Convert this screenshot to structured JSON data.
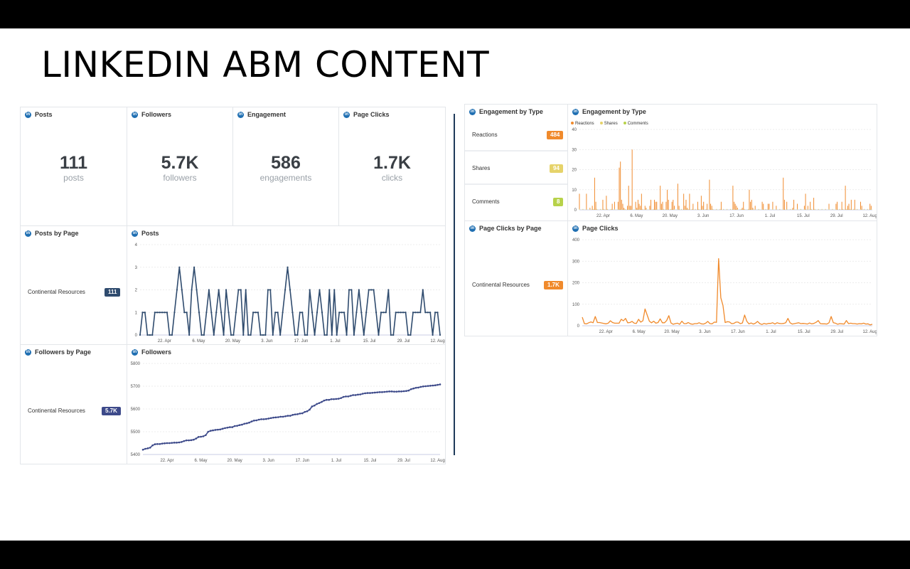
{
  "slide": {
    "title": "LINKEDIN ABM CONTENT"
  },
  "colors": {
    "navy": "#2f4b6e",
    "followers_line": "#3d4a8a",
    "orange": "#f08a2c",
    "shares": "#e6d36a",
    "comments": "#b7d24a",
    "linkedin": "#1f6fb2"
  },
  "metrics": [
    {
      "title": "Posts",
      "value": "111",
      "unit": "posts"
    },
    {
      "title": "Followers",
      "value": "5.7K",
      "unit": "followers"
    },
    {
      "title": "Engagement",
      "value": "586",
      "unit": "engagements"
    },
    {
      "title": "Page Clicks",
      "value": "1.7K",
      "unit": "clicks"
    }
  ],
  "posts_by_page": {
    "title": "Posts by Page",
    "label": "Continental Resources",
    "badge": "111"
  },
  "followers_by_page": {
    "title": "Followers by Page",
    "label": "Continental Resources",
    "badge": "5.7K"
  },
  "engagement_by_type": {
    "title": "Engagement by Type",
    "rows": [
      {
        "label": "Reactions",
        "badge": "484",
        "color": "#f08a2c"
      },
      {
        "label": "Shares",
        "badge": "94",
        "color": "#e6d36a"
      },
      {
        "label": "Comments",
        "badge": "8",
        "color": "#b7d24a"
      }
    ]
  },
  "page_clicks_by_page": {
    "title": "Page Clicks by Page",
    "label": "Continental Resources",
    "badge": "1.7K"
  },
  "x_ticks": [
    "22. Apr",
    "6. May",
    "20. May",
    "3. Jun",
    "17. Jun",
    "1. Jul",
    "15. Jul",
    "29. Jul",
    "12. Aug"
  ],
  "chart_data": [
    {
      "id": "posts",
      "type": "line",
      "title": "Posts",
      "x_start": "2019-04-12",
      "x_end": "2019-08-13",
      "ylim": [
        0,
        4
      ],
      "yticks": [
        0,
        1,
        2,
        3,
        4
      ],
      "series": [
        {
          "values": [
            0,
            1,
            1,
            0,
            0,
            0,
            1,
            1,
            1,
            1,
            1,
            1,
            0,
            0,
            1,
            2,
            3,
            2,
            1,
            1,
            0,
            2,
            3,
            2,
            1,
            0,
            0,
            1,
            2,
            1,
            0,
            1,
            2,
            1,
            0,
            2,
            1,
            0,
            0,
            1,
            2,
            2,
            0,
            2,
            0,
            0,
            1,
            1,
            1,
            0,
            0,
            0,
            2,
            2,
            0,
            1,
            1,
            0,
            1,
            2,
            3,
            2,
            1,
            0,
            0,
            1,
            1,
            0,
            0,
            2,
            1,
            0,
            1,
            2,
            1,
            0,
            0,
            2,
            0,
            2,
            0,
            1,
            1,
            1,
            0,
            2,
            2,
            0,
            1,
            2,
            1,
            0,
            1,
            2,
            2,
            2,
            1,
            0,
            1,
            1,
            1,
            2,
            0,
            0,
            1,
            1,
            1,
            1,
            1,
            0,
            0,
            1,
            1,
            1,
            1,
            2,
            1,
            1,
            1,
            0,
            1,
            1,
            0
          ]
        }
      ]
    },
    {
      "id": "followers",
      "type": "line",
      "title": "Followers",
      "x_start": "2019-04-12",
      "x_end": "2019-08-13",
      "ylim": [
        5400,
        5800
      ],
      "yticks": [
        5400,
        5500,
        5600,
        5700,
        5800
      ],
      "series": [
        {
          "values": [
            5421,
            5425,
            5427,
            5430,
            5440,
            5445,
            5446,
            5446,
            5448,
            5449,
            5450,
            5450,
            5451,
            5452,
            5452,
            5453,
            5455,
            5459,
            5462,
            5462,
            5463,
            5465,
            5470,
            5477,
            5478,
            5480,
            5485,
            5500,
            5504,
            5506,
            5508,
            5509,
            5510,
            5513,
            5516,
            5518,
            5520,
            5520,
            5525,
            5526,
            5529,
            5531,
            5535,
            5537,
            5540,
            5545,
            5549,
            5550,
            5553,
            5555,
            5555,
            5556,
            5558,
            5560,
            5562,
            5563,
            5564,
            5566,
            5566,
            5568,
            5570,
            5570,
            5574,
            5576,
            5577,
            5580,
            5581,
            5587,
            5590,
            5597,
            5611,
            5615,
            5622,
            5626,
            5631,
            5637,
            5640,
            5640,
            5643,
            5643,
            5644,
            5645,
            5648,
            5653,
            5655,
            5655,
            5658,
            5661,
            5661,
            5663,
            5664,
            5667,
            5669,
            5670,
            5670,
            5671,
            5672,
            5673,
            5674,
            5674,
            5675,
            5676,
            5677,
            5677,
            5676,
            5676,
            5677,
            5677,
            5678,
            5679,
            5681,
            5687,
            5690,
            5693,
            5694,
            5697,
            5699,
            5700,
            5701,
            5702,
            5703,
            5704,
            5706,
            5708
          ]
        }
      ]
    },
    {
      "id": "engagement_by_type",
      "type": "bar",
      "title": "Engagement by Type",
      "x_start": "2019-04-12",
      "x_end": "2019-08-13",
      "ylim": [
        0,
        40
      ],
      "yticks": [
        0,
        10,
        20,
        30,
        40
      ],
      "legend": [
        "Reactions",
        "Shares",
        "Comments"
      ],
      "series": [
        {
          "name": "Reactions",
          "values": [
            8,
            0,
            0,
            0,
            0,
            0,
            8,
            0,
            0,
            1,
            0,
            2,
            0,
            16,
            4,
            0,
            0,
            0,
            0,
            0,
            5,
            0,
            0,
            7,
            0,
            0,
            0,
            0,
            3,
            0,
            4,
            0,
            0,
            4,
            21,
            24,
            5,
            3,
            1,
            0,
            0,
            2,
            12,
            2,
            2,
            30,
            0,
            0,
            4,
            1,
            5,
            3,
            2,
            8,
            0,
            0,
            2,
            1,
            0,
            0,
            2,
            5,
            0,
            0,
            5,
            4,
            4,
            0,
            0,
            12,
            3,
            4,
            0,
            0,
            4,
            10,
            5,
            0,
            0,
            4,
            5,
            2,
            0,
            0,
            13,
            2,
            0,
            0,
            0,
            8,
            2,
            5,
            1,
            0,
            8,
            0,
            0,
            3,
            0,
            0,
            0,
            4,
            0,
            0,
            7,
            2,
            4,
            0,
            0,
            3,
            0,
            15,
            3,
            2,
            0,
            0,
            0,
            0,
            0,
            0,
            0,
            4,
            0,
            0,
            0,
            0,
            0,
            0,
            0,
            0,
            0,
            12,
            4,
            3,
            2,
            1,
            0,
            0,
            0,
            1,
            4,
            0,
            0,
            0,
            0,
            10,
            4,
            5,
            1,
            0,
            2,
            0,
            0,
            0,
            0,
            0,
            4,
            3,
            0,
            0,
            0,
            3,
            3,
            0,
            0,
            4,
            0,
            0,
            2,
            0,
            0,
            0,
            0,
            0,
            16,
            5,
            0,
            4,
            0,
            0,
            0,
            0,
            1,
            5,
            0,
            0,
            3,
            0,
            0,
            0,
            0,
            0,
            2,
            8,
            0,
            2,
            0,
            4,
            0,
            0,
            6,
            0,
            0,
            0,
            0,
            0,
            0,
            0,
            0,
            0,
            0,
            0,
            0,
            3,
            0,
            0,
            0,
            0,
            0,
            3,
            4,
            0,
            0,
            0,
            4,
            0,
            0,
            12,
            0,
            2,
            3,
            0,
            5,
            0,
            0,
            5,
            0,
            0,
            0,
            0,
            4,
            2,
            0,
            0,
            0,
            0,
            0,
            0,
            3,
            2,
            0
          ]
        },
        {
          "name": "Shares",
          "values": []
        },
        {
          "name": "Comments",
          "values": []
        }
      ]
    },
    {
      "id": "page_clicks",
      "type": "line",
      "title": "Page Clicks",
      "x_start": "2019-04-12",
      "x_end": "2019-08-13",
      "ylim": [
        0,
        400
      ],
      "yticks": [
        0,
        100,
        200,
        300,
        400
      ],
      "series": [
        {
          "values": [
            40,
            10,
            9,
            14,
            18,
            14,
            43,
            15,
            15,
            13,
            11,
            9,
            12,
            23,
            15,
            12,
            12,
            12,
            30,
            23,
            34,
            14,
            15,
            20,
            12,
            11,
            30,
            17,
            23,
            78,
            50,
            21,
            14,
            21,
            12,
            15,
            32,
            14,
            14,
            24,
            47,
            13,
            7,
            10,
            12,
            7,
            21,
            10,
            10,
            15,
            9,
            7,
            10,
            10,
            14,
            9,
            8,
            12,
            20,
            10,
            9,
            17,
            16,
            312,
            130,
            95,
            15,
            19,
            18,
            10,
            11,
            17,
            17,
            10,
            13,
            50,
            21,
            9,
            13,
            8,
            12,
            20,
            10,
            6,
            11,
            8,
            11,
            11,
            14,
            8,
            14,
            11,
            10,
            11,
            14,
            34,
            14,
            8,
            10,
            12,
            14,
            10,
            11,
            10,
            8,
            13,
            9,
            11,
            16,
            24,
            10,
            9,
            9,
            8,
            14,
            43,
            14,
            12,
            7,
            10,
            9,
            8,
            24,
            10,
            12,
            10,
            10,
            8,
            10,
            9,
            12,
            8,
            9,
            4,
            7
          ]
        }
      ]
    }
  ]
}
